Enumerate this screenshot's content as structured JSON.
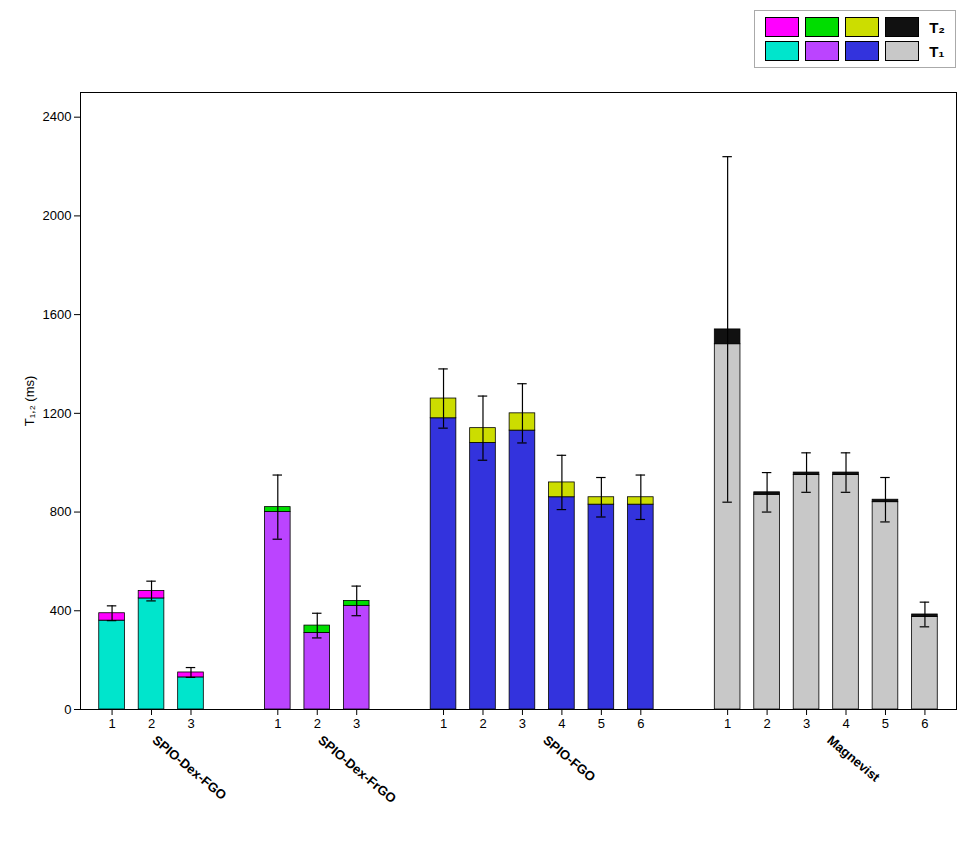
{
  "chart_data": {
    "type": "bar",
    "stacked": true,
    "ylabel": "T₁,₂ (ms)",
    "ylim": [
      0,
      2500
    ],
    "yticks": [
      0,
      400,
      800,
      1200,
      1600,
      2000,
      2400
    ],
    "grid": false,
    "legend": "upper right",
    "groups": [
      {
        "name": "SPIO-Dex-FGO",
        "categories": [
          "1",
          "2",
          "3"
        ],
        "series": [
          {
            "name": "T₁",
            "color": "#00E5CC",
            "values": [
              360,
              450,
              130
            ],
            "errors": [
              30,
              40,
              20
            ]
          },
          {
            "name": "T₂",
            "color": "#FF00FF",
            "values": [
              30,
              30,
              20
            ]
          }
        ]
      },
      {
        "name": "SPIO-Dex-FrGO",
        "categories": [
          "1",
          "2",
          "3"
        ],
        "series": [
          {
            "name": "T₁",
            "color": "#BB44FF",
            "values": [
              800,
              310,
              420
            ],
            "errors": [
              130,
              50,
              60
            ]
          },
          {
            "name": "T₂",
            "color": "#00DD00",
            "values": [
              20,
              30,
              20
            ]
          }
        ]
      },
      {
        "name": "SPIO-FGO",
        "categories": [
          "1",
          "2",
          "3",
          "4",
          "5",
          "6"
        ],
        "series": [
          {
            "name": "T₁",
            "color": "#3333DD",
            "values": [
              1180,
              1080,
              1130,
              860,
              830,
              830
            ],
            "errors": [
              120,
              130,
              120,
              110,
              80,
              90
            ]
          },
          {
            "name": "T₂",
            "color": "#CCDD00",
            "values": [
              80,
              60,
              70,
              60,
              30,
              30
            ]
          }
        ]
      },
      {
        "name": "Magnevist",
        "categories": [
          "1",
          "2",
          "3",
          "4",
          "5",
          "6"
        ],
        "series": [
          {
            "name": "T₁",
            "color": "#C8C8C8",
            "values": [
              1480,
              870,
              950,
              950,
              840,
              375
            ],
            "errors": [
              700,
              80,
              80,
              80,
              90,
              50
            ]
          },
          {
            "name": "T₂",
            "color": "#111111",
            "values": [
              60,
              10,
              10,
              10,
              10,
              10
            ]
          }
        ]
      }
    ]
  }
}
